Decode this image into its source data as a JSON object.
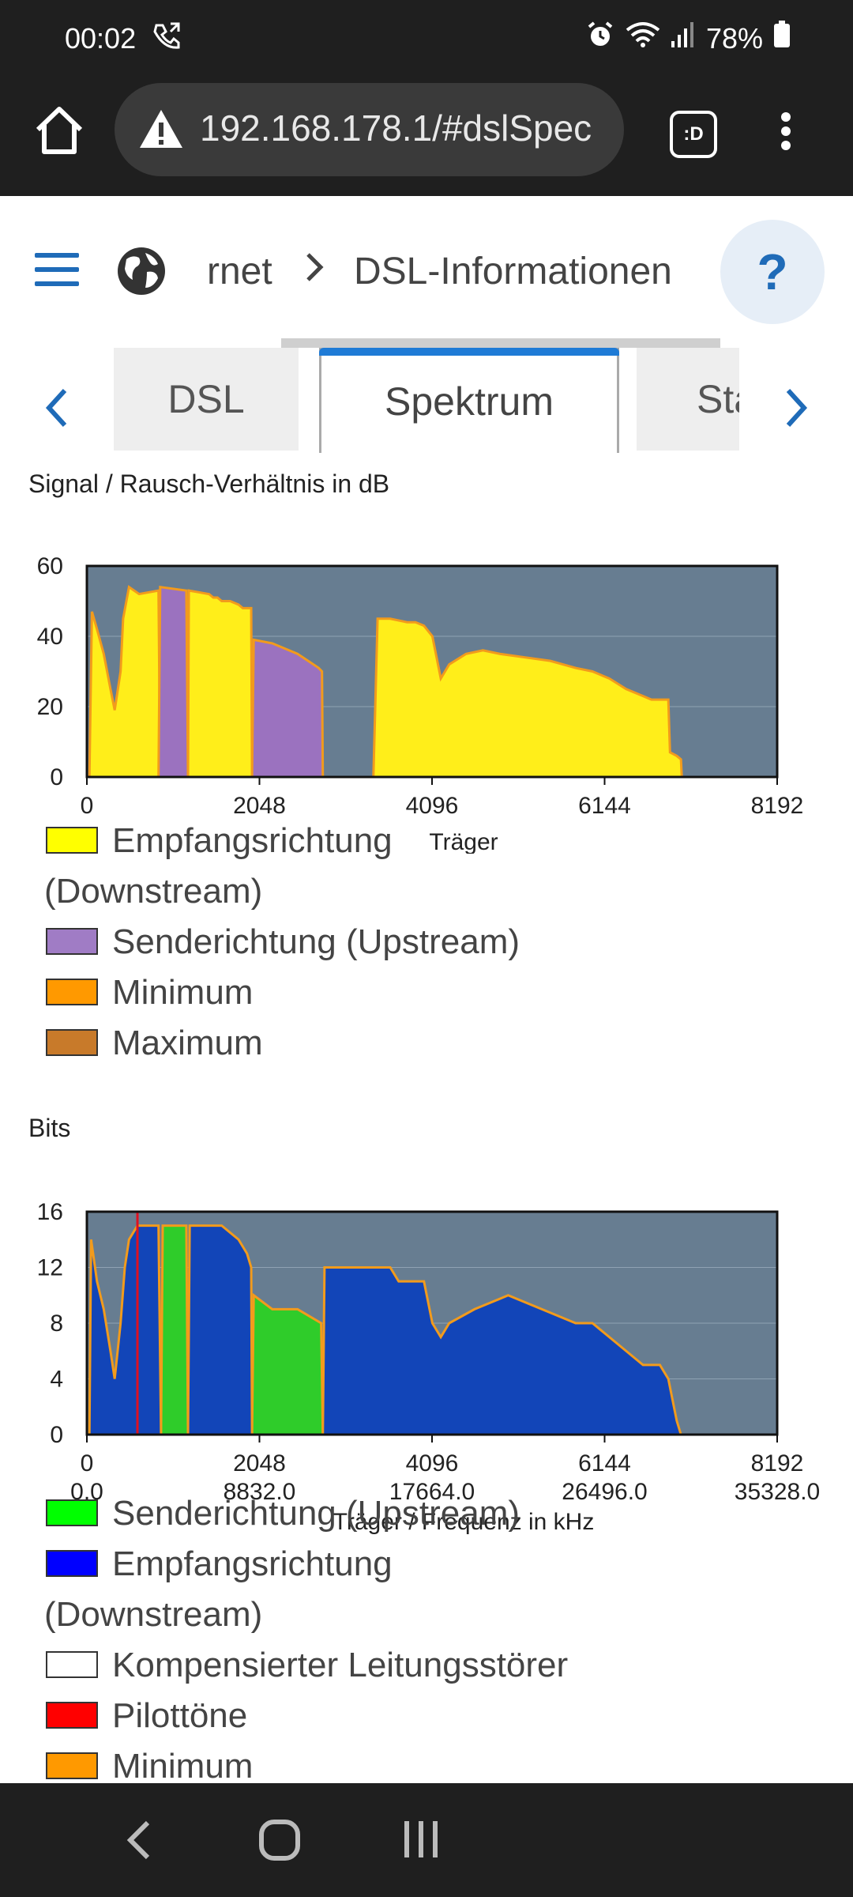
{
  "status_bar": {
    "time": "00:02",
    "battery": "78%"
  },
  "browser": {
    "url": "192.168.178.1/#dslSpec",
    "tab_count": ":D"
  },
  "header": {
    "crumb_prev": "rnet",
    "crumb_current": "DSL-Informationen",
    "help_label": "?"
  },
  "tabs": [
    {
      "label": "DSL"
    },
    {
      "label": "Spektrum",
      "active": true
    },
    {
      "label": "Statisti"
    }
  ],
  "colors": {
    "accent": "#1f6bb8",
    "plot_bg": "#677d91"
  },
  "charts": [
    {
      "title": "Signal / Rausch-Verhältnis in dB",
      "type": "area",
      "xlabel": "Träger",
      "x_ticks": [
        "0",
        "2048",
        "4096",
        "6144",
        "8192"
      ],
      "y_ticks": [
        "0",
        "20",
        "40",
        "60"
      ],
      "ylim": [
        0,
        60
      ],
      "xlim": [
        0,
        8192
      ],
      "legend": [
        {
          "label": "Empfangsrichtung",
          "label_cont": "(Downstream)",
          "color": "#ffff00"
        },
        {
          "label": "Senderichtung (Upstream)",
          "color": "#a07cc5"
        },
        {
          "label": "Minimum",
          "color": "#ff9900"
        },
        {
          "label": "Maximum",
          "color": "#c87a2a"
        }
      ]
    },
    {
      "title": "Bits",
      "type": "area",
      "xlabel": "Träger / Frequenz in kHz",
      "x_ticks": [
        "0",
        "2048",
        "4096",
        "6144",
        "8192"
      ],
      "x_ticks2": [
        "0.0",
        "8832.0",
        "17664.0",
        "26496.0",
        "35328.0"
      ],
      "y_ticks": [
        "0",
        "4",
        "8",
        "12",
        "16"
      ],
      "ylim": [
        0,
        16
      ],
      "xlim": [
        0,
        8192
      ],
      "legend": [
        {
          "label": "Senderichtung (Upstream)",
          "color": "#00ff00"
        },
        {
          "label": "Empfangsrichtung",
          "label_cont": "(Downstream)",
          "color": "#0000ff"
        },
        {
          "label": "Kompensierter Leitungsstörer",
          "color": "#ffffff"
        },
        {
          "label": "Pilottöne",
          "color": "#ff0000"
        },
        {
          "label": "Minimum",
          "color": "#ff9900"
        }
      ]
    }
  ],
  "chart_data": [
    {
      "type": "area",
      "title": "Signal / Rausch-Verhältnis in dB",
      "xlabel": "Träger",
      "xlim": [
        0,
        8192
      ],
      "ylim": [
        0,
        60
      ],
      "series": [
        {
          "name": "Empfangsrichtung (Downstream)",
          "x": [
            30,
            60,
            120,
            200,
            280,
            330,
            400,
            430,
            500,
            560,
            620,
            850,
            870,
            1060,
            1200,
            1210,
            1450,
            1500,
            1550,
            1600,
            1700,
            1800,
            1850,
            1950,
            1960,
            3400,
            3450,
            3600,
            3800,
            3900,
            4000,
            4100,
            4200,
            4250,
            4300,
            4500,
            4700,
            4900,
            5200,
            5500,
            5800,
            6000,
            6200,
            6400,
            6600,
            6700,
            6900,
            6920,
            7000,
            7050,
            7060
          ],
          "y": [
            0,
            47,
            42,
            35,
            25,
            19,
            30,
            45,
            54,
            53,
            52,
            53,
            0,
            0,
            0,
            53,
            52,
            51,
            51,
            50,
            50,
            49,
            48,
            48,
            0,
            0,
            45,
            45,
            44,
            44,
            43,
            40,
            28,
            30,
            32,
            35,
            36,
            35,
            34,
            33,
            31,
            30,
            28,
            25,
            23,
            22,
            22,
            7,
            6,
            5,
            0
          ]
        },
        {
          "name": "Senderichtung (Upstream)",
          "x": [
            850,
            870,
            1180,
            1200,
            1960,
            1980,
            2200,
            2500,
            2750,
            2790,
            2800
          ],
          "y": [
            0,
            54,
            53,
            0,
            0,
            39,
            38,
            35,
            31,
            30,
            0
          ]
        }
      ]
    },
    {
      "type": "area",
      "title": "Bits",
      "xlabel": "Träger / Frequenz in kHz",
      "xlim": [
        0,
        8192
      ],
      "ylim": [
        0,
        16
      ],
      "series": [
        {
          "name": "Senderichtung (Upstream)",
          "x": [
            880,
            900,
            1180,
            1200,
            1960,
            1980,
            2200,
            2500,
            2780,
            2800
          ],
          "y": [
            0,
            15,
            15,
            0,
            0,
            10,
            9,
            9,
            8,
            0
          ]
        },
        {
          "name": "Empfangsrichtung (Downstream)",
          "x": [
            30,
            50,
            120,
            200,
            280,
            330,
            400,
            450,
            500,
            600,
            700,
            850,
            880,
            1200,
            1220,
            1600,
            1800,
            1900,
            1950,
            1960,
            2800,
            2820,
            3000,
            3600,
            3700,
            3800,
            4000,
            4100,
            4200,
            4300,
            4600,
            5000,
            5400,
            5800,
            6000,
            6200,
            6400,
            6600,
            6800,
            6900,
            7000,
            7050
          ],
          "y": [
            0,
            14,
            11,
            9,
            6,
            4,
            8,
            12,
            14,
            15,
            15,
            15,
            0,
            0,
            15,
            15,
            14,
            13,
            12,
            0,
            0,
            12,
            12,
            12,
            11,
            11,
            11,
            8,
            7,
            8,
            9,
            10,
            9,
            8,
            8,
            7,
            6,
            5,
            5,
            4,
            1,
            0
          ]
        },
        {
          "name": "Pilottöne",
          "x": [
            600
          ],
          "y": [
            16
          ]
        }
      ]
    }
  ]
}
